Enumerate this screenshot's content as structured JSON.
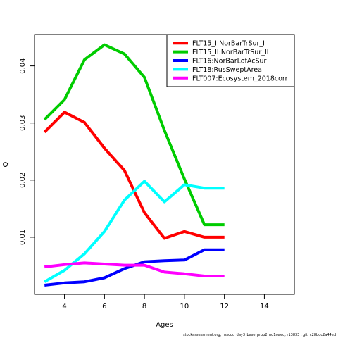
{
  "footer_text": "stockassessment.org, nsscod_day3_base_prop2_no1sweo, r13833 , git: c28bdc2a44ed",
  "chart_data": {
    "type": "line",
    "xlabel": "Ages",
    "ylabel": "Q",
    "xlim": [
      2.5,
      15.5
    ],
    "ylim": [
      0.0,
      0.0455
    ],
    "xticks": [
      4,
      6,
      8,
      10,
      12,
      14
    ],
    "yticks": [
      0.01,
      0.02,
      0.03,
      0.04
    ],
    "ytick_labels": [
      "0.01",
      "0.02",
      "0.03",
      "0.04"
    ],
    "legend_position": "top-right",
    "grid": false,
    "x": [
      3,
      4,
      5,
      6,
      7,
      8,
      9,
      10,
      11,
      12
    ],
    "series": [
      {
        "name": "FLT15_I:NorBarTrSur_I",
        "color": "#ff0000",
        "values": [
          0.0284,
          0.0319,
          0.0301,
          0.0256,
          0.0217,
          0.0143,
          0.0098,
          0.011,
          0.01,
          0.01
        ]
      },
      {
        "name": "FLT15_II:NorBarTrSur_II",
        "color": "#00cc00",
        "values": [
          0.0306,
          0.0341,
          0.0411,
          0.0437,
          0.0421,
          0.038,
          0.0287,
          0.0202,
          0.0122,
          0.0122
        ]
      },
      {
        "name": "FLT16:NorBarLofAcSur",
        "color": "#0000ff",
        "values": [
          0.0016,
          0.002,
          0.0022,
          0.0029,
          0.0045,
          0.0057,
          0.0059,
          0.006,
          0.0078,
          0.0078
        ]
      },
      {
        "name": "FLT18:RusSweptArea",
        "color": "#00ffff",
        "values": [
          0.0022,
          0.0042,
          0.0071,
          0.011,
          0.0165,
          0.0198,
          0.0162,
          0.0192,
          0.0186,
          0.0186
        ]
      },
      {
        "name": "FLT007:Ecosystem_2018corr",
        "color": "#ff00ff",
        "values": [
          0.0048,
          0.0052,
          0.0055,
          0.0053,
          0.0051,
          0.0051,
          0.0039,
          0.0036,
          0.0032,
          0.0032
        ]
      }
    ]
  }
}
